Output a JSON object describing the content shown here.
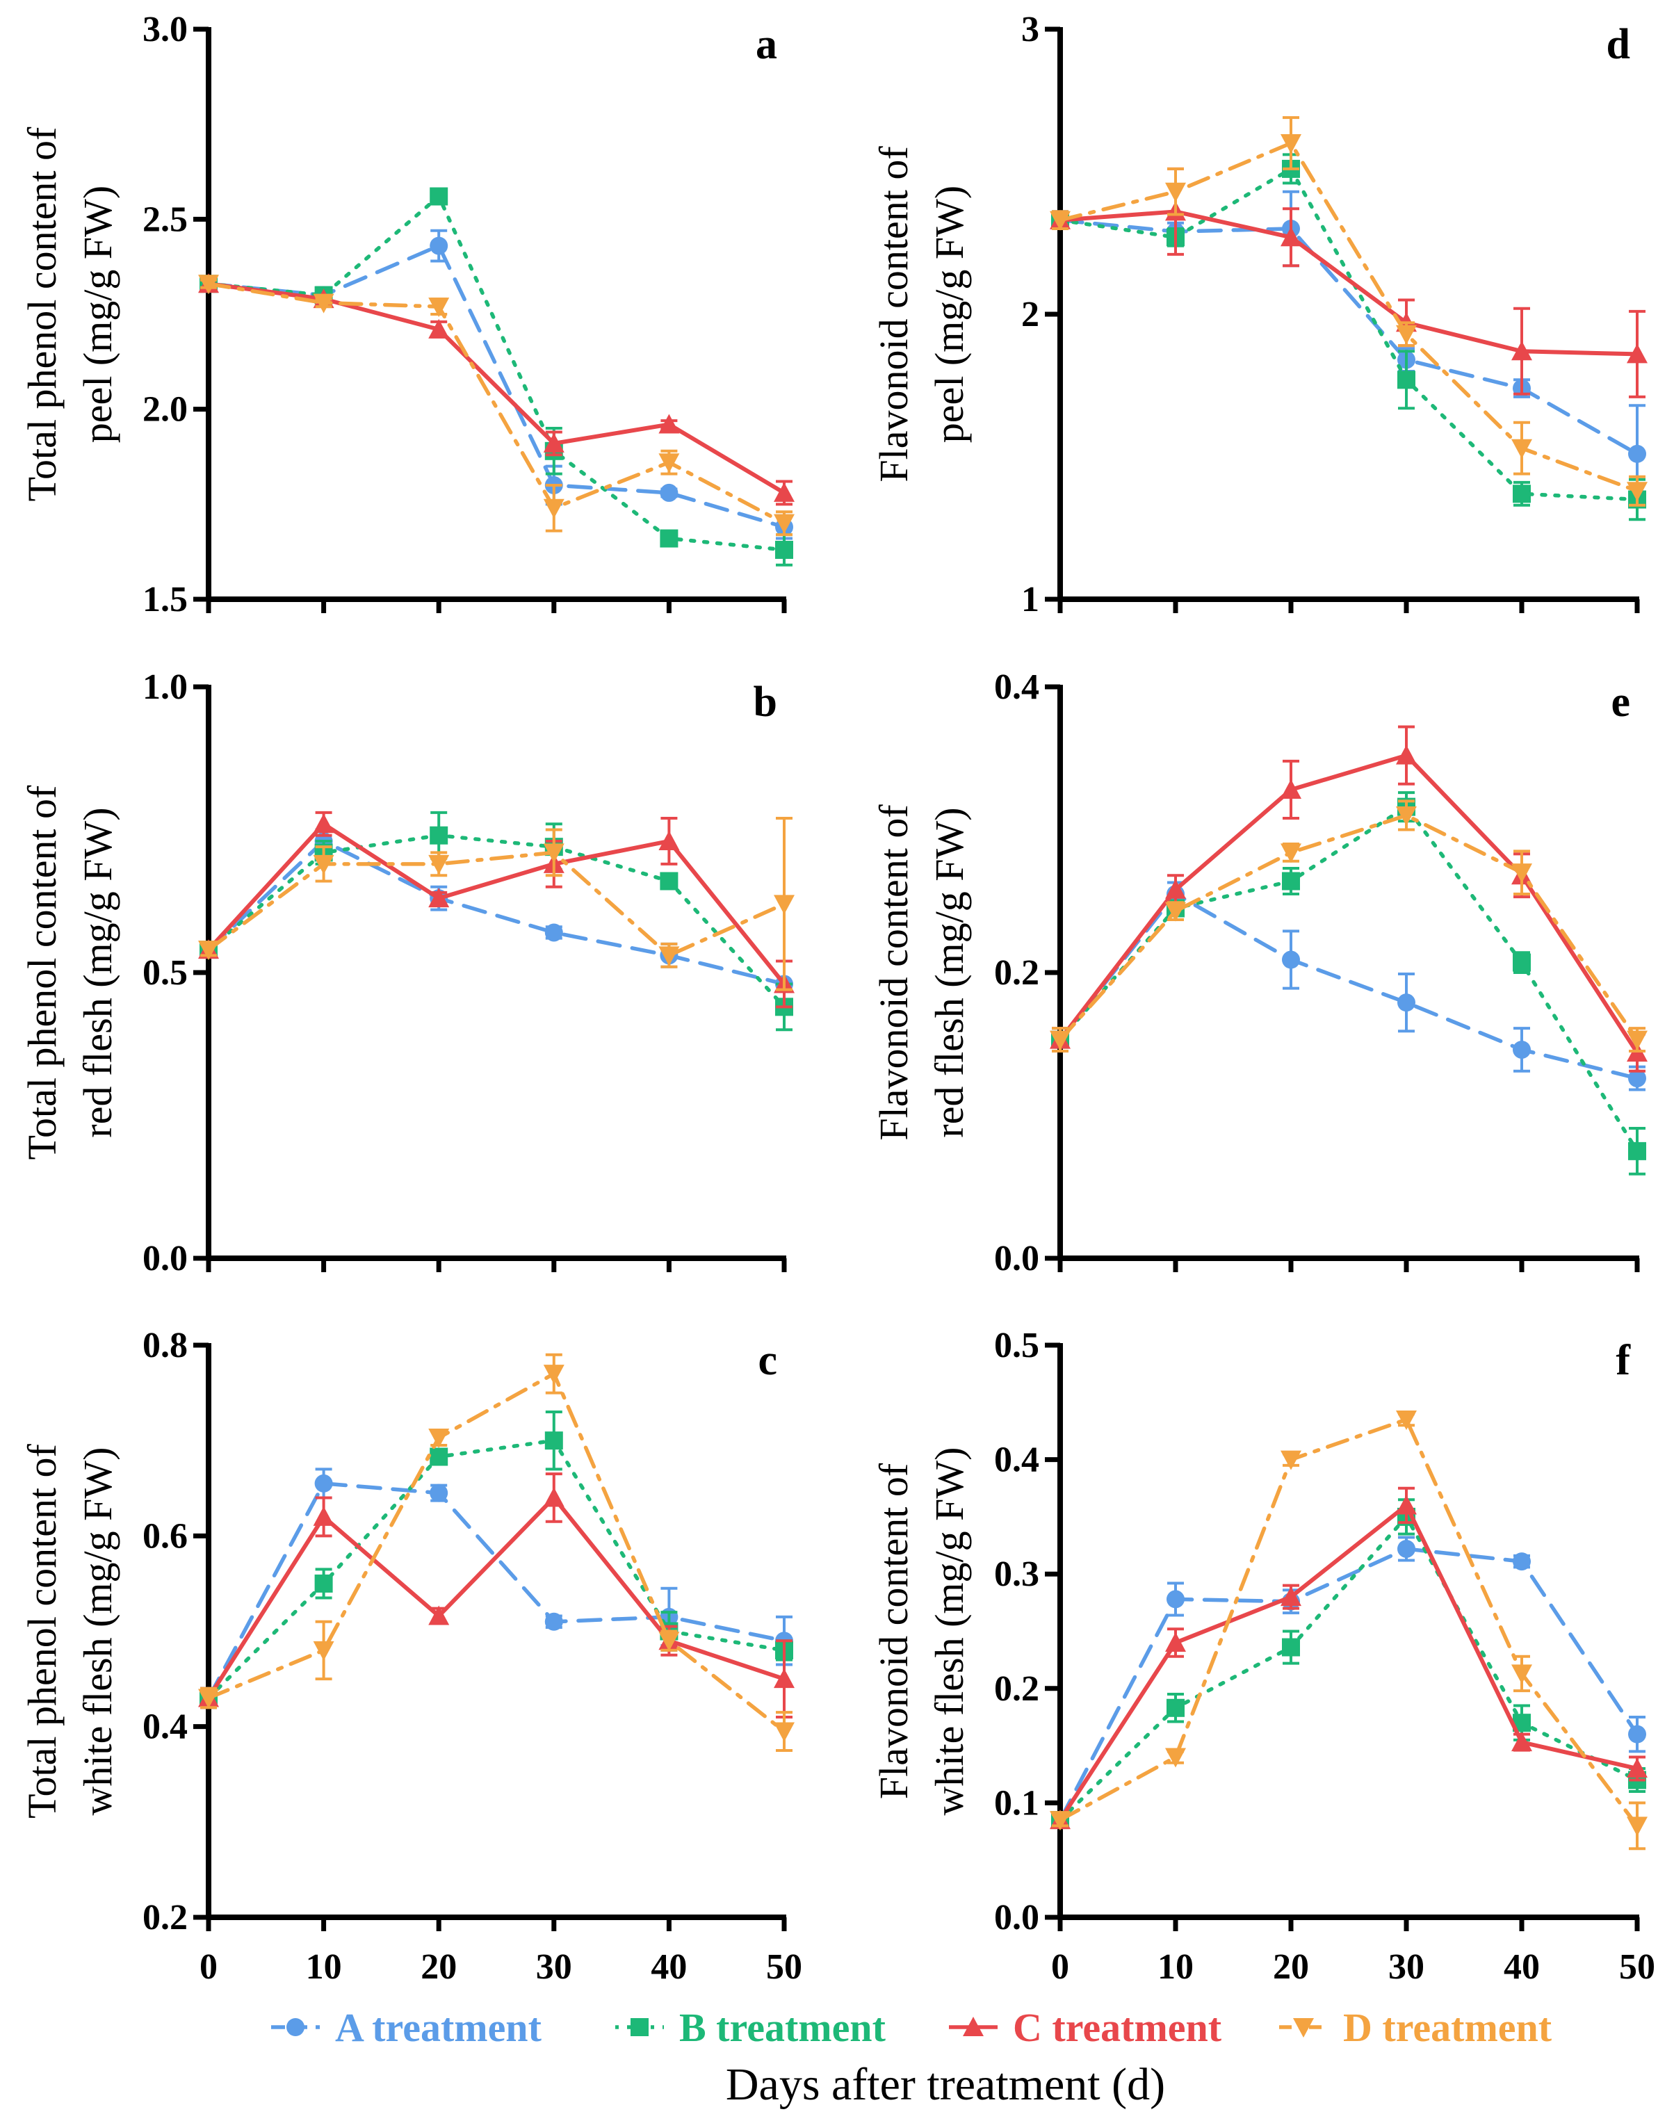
{
  "figure": {
    "xlabel": "Days after treatment (d)",
    "colors": {
      "A": "#5B9CE8",
      "B": "#1DB877",
      "C": "#E8474B",
      "D": "#F4A340"
    }
  },
  "chart_data": [
    {
      "panel": "a",
      "type": "line",
      "ylabel": [
        "Total phenol content of",
        "peel (mg/g FW)"
      ],
      "x": [
        0,
        10,
        20,
        30,
        40,
        50
      ],
      "xticks": [
        "0",
        "10",
        "20",
        "30",
        "40",
        "50"
      ],
      "ylim": [
        1.5,
        3.0
      ],
      "yticks": [
        1.5,
        2.0,
        2.5,
        3.0
      ],
      "ytick_labels": [
        "1.5",
        "2.0",
        "2.5",
        "3.0"
      ],
      "series": [
        {
          "name": "A treatment",
          "values": [
            2.33,
            2.3,
            2.43,
            1.8,
            1.78,
            1.69
          ],
          "errors": [
            0.01,
            0.02,
            0.04,
            0.05,
            0.01,
            0.03
          ]
        },
        {
          "name": "B treatment",
          "values": [
            2.33,
            2.3,
            2.56,
            1.89,
            1.66,
            1.63
          ],
          "errors": [
            0.01,
            0.02,
            0.02,
            0.06,
            0.01,
            0.04
          ]
        },
        {
          "name": "C treatment",
          "values": [
            2.33,
            2.29,
            2.21,
            1.91,
            1.96,
            1.78
          ],
          "errors": [
            0.01,
            0.01,
            0.02,
            0.03,
            0.01,
            0.03
          ]
        },
        {
          "name": "D treatment",
          "values": [
            2.33,
            2.28,
            2.27,
            1.74,
            1.86,
            1.7
          ],
          "errors": [
            0.01,
            0.01,
            0.02,
            0.06,
            0.03,
            0.03
          ]
        }
      ]
    },
    {
      "panel": "d",
      "type": "line",
      "ylabel": [
        "Flavonoid content of",
        "peel (mg/g FW)"
      ],
      "x": [
        0,
        10,
        20,
        30,
        40,
        50
      ],
      "xticks": [
        "0",
        "10",
        "20",
        "30",
        "40",
        "50"
      ],
      "ylim": [
        1,
        3
      ],
      "yticks": [
        1,
        2,
        3
      ],
      "ytick_labels": [
        "1",
        "2",
        "3"
      ],
      "series": [
        {
          "name": "A treatment",
          "values": [
            2.33,
            2.29,
            2.3,
            1.84,
            1.74,
            1.51
          ],
          "errors": [
            0.03,
            0.03,
            0.13,
            0.04,
            0.03,
            0.17
          ]
        },
        {
          "name": "B treatment",
          "values": [
            2.33,
            2.27,
            2.51,
            1.77,
            1.37,
            1.35
          ],
          "errors": [
            0.03,
            0.03,
            0.05,
            0.1,
            0.04,
            0.07
          ]
        },
        {
          "name": "C treatment",
          "values": [
            2.33,
            2.36,
            2.27,
            1.97,
            1.87,
            1.86
          ],
          "errors": [
            0.03,
            0.15,
            0.1,
            0.08,
            0.15,
            0.15
          ]
        },
        {
          "name": "D treatment",
          "values": [
            2.33,
            2.43,
            2.6,
            1.93,
            1.53,
            1.38
          ],
          "errors": [
            0.03,
            0.08,
            0.09,
            0.04,
            0.09,
            0.05
          ]
        }
      ]
    },
    {
      "panel": "b",
      "type": "line",
      "ylabel": [
        "Total phenol content of",
        "red flesh (mg/g FW)"
      ],
      "x": [
        0,
        10,
        20,
        30,
        40,
        50
      ],
      "xticks": [
        "0",
        "10",
        "20",
        "30",
        "40",
        "50"
      ],
      "ylim": [
        0.0,
        1.0
      ],
      "yticks": [
        0.0,
        0.5,
        1.0
      ],
      "ytick_labels": [
        "0.0",
        "0.5",
        "1.0"
      ],
      "series": [
        {
          "name": "A treatment",
          "values": [
            0.54,
            0.73,
            0.63,
            0.57,
            0.53,
            0.48
          ],
          "errors": [
            0.01,
            0.02,
            0.02,
            0.01,
            0.02,
            0.04
          ]
        },
        {
          "name": "B treatment",
          "values": [
            0.54,
            0.71,
            0.74,
            0.72,
            0.66,
            0.44
          ],
          "errors": [
            0.01,
            0.02,
            0.04,
            0.04,
            0.01,
            0.04
          ]
        },
        {
          "name": "C treatment",
          "values": [
            0.54,
            0.76,
            0.63,
            0.69,
            0.73,
            0.48
          ],
          "errors": [
            0.01,
            0.02,
            0.01,
            0.04,
            0.04,
            0.04
          ]
        },
        {
          "name": "D treatment",
          "values": [
            0.54,
            0.69,
            0.69,
            0.71,
            0.53,
            0.62
          ],
          "errors": [
            0.01,
            0.03,
            0.02,
            0.04,
            0.02,
            0.15
          ]
        }
      ]
    },
    {
      "panel": "e",
      "type": "line",
      "ylabel": [
        "Flavonoid content of",
        "red flesh (mg/g FW)"
      ],
      "x": [
        0,
        10,
        20,
        30,
        40,
        50
      ],
      "xticks": [
        "0",
        "10",
        "20",
        "30",
        "40",
        "50"
      ],
      "ylim": [
        0.0,
        0.4
      ],
      "yticks": [
        0.0,
        0.2,
        0.4
      ],
      "ytick_labels": [
        "0.0",
        "0.2",
        "0.4"
      ],
      "series": [
        {
          "name": "A treatment",
          "values": [
            0.153,
            0.255,
            0.209,
            0.179,
            0.146,
            0.126
          ],
          "errors": [
            0.008,
            0.008,
            0.02,
            0.02,
            0.015,
            0.008
          ]
        },
        {
          "name": "B treatment",
          "values": [
            0.153,
            0.245,
            0.264,
            0.316,
            0.207,
            0.075
          ],
          "errors": [
            0.008,
            0.008,
            0.009,
            0.01,
            0.007,
            0.016
          ]
        },
        {
          "name": "C treatment",
          "values": [
            0.153,
            0.258,
            0.328,
            0.352,
            0.268,
            0.144
          ],
          "errors": [
            0.008,
            0.01,
            0.02,
            0.02,
            0.015,
            0.013
          ]
        },
        {
          "name": "D treatment",
          "values": [
            0.153,
            0.243,
            0.284,
            0.31,
            0.27,
            0.153
          ],
          "errors": [
            0.008,
            0.006,
            0.006,
            0.01,
            0.015,
            0.008
          ]
        }
      ]
    },
    {
      "panel": "c",
      "type": "line",
      "ylabel": [
        "Total phenol content of",
        "white flesh (mg/g FW)"
      ],
      "x": [
        0,
        10,
        20,
        30,
        40,
        50
      ],
      "xticks": [
        "0",
        "10",
        "20",
        "30",
        "40",
        "50"
      ],
      "ylim": [
        0.2,
        0.8
      ],
      "yticks": [
        0.2,
        0.4,
        0.6,
        0.8
      ],
      "ytick_labels": [
        "0.2",
        "0.4",
        "0.6",
        "0.8"
      ],
      "series": [
        {
          "name": "A treatment",
          "values": [
            0.43,
            0.655,
            0.645,
            0.51,
            0.515,
            0.49
          ],
          "errors": [
            0.01,
            0.015,
            0.008,
            0.006,
            0.03,
            0.025
          ]
        },
        {
          "name": "B treatment",
          "values": [
            0.43,
            0.55,
            0.683,
            0.7,
            0.5,
            0.48
          ],
          "errors": [
            0.01,
            0.015,
            0.008,
            0.03,
            0.02,
            0.01
          ]
        },
        {
          "name": "C treatment",
          "values": [
            0.43,
            0.62,
            0.516,
            0.64,
            0.49,
            0.45
          ],
          "errors": [
            0.01,
            0.02,
            0.008,
            0.025,
            0.015,
            0.04
          ]
        },
        {
          "name": "D treatment",
          "values": [
            0.43,
            0.48,
            0.703,
            0.77,
            0.49,
            0.395
          ],
          "errors": [
            0.01,
            0.03,
            0.008,
            0.02,
            0.01,
            0.02
          ]
        }
      ]
    },
    {
      "panel": "f",
      "type": "line",
      "ylabel": [
        "Flavonoid content of",
        "white flesh (mg/g FW)"
      ],
      "x": [
        0,
        10,
        20,
        30,
        40,
        50
      ],
      "xticks": [
        "0",
        "10",
        "20",
        "30",
        "40",
        "50"
      ],
      "ylim": [
        0.0,
        0.5
      ],
      "yticks": [
        0.0,
        0.1,
        0.2,
        0.3,
        0.4,
        0.5
      ],
      "ytick_labels": [
        "0.0",
        "0.1",
        "0.2",
        "0.3",
        "0.4",
        "0.5"
      ],
      "series": [
        {
          "name": "A treatment",
          "values": [
            0.085,
            0.278,
            0.276,
            0.322,
            0.311,
            0.16
          ],
          "errors": [
            0.005,
            0.014,
            0.01,
            0.01,
            0.005,
            0.015
          ]
        },
        {
          "name": "B treatment",
          "values": [
            0.085,
            0.183,
            0.236,
            0.35,
            0.17,
            0.12
          ],
          "errors": [
            0.005,
            0.012,
            0.014,
            0.015,
            0.015,
            0.01
          ]
        },
        {
          "name": "C treatment",
          "values": [
            0.085,
            0.24,
            0.28,
            0.36,
            0.153,
            0.13
          ],
          "errors": [
            0.005,
            0.012,
            0.01,
            0.015,
            0.007,
            0.01
          ]
        },
        {
          "name": "D treatment",
          "values": [
            0.085,
            0.14,
            0.4,
            0.435,
            0.213,
            0.08
          ],
          "errors": [
            0.005,
            0.005,
            0.005,
            0.005,
            0.015,
            0.02
          ]
        }
      ]
    }
  ],
  "legend": [
    {
      "key": "A",
      "label": "A treatment",
      "marker": "circle",
      "dash": "dash"
    },
    {
      "key": "B",
      "label": "B treatment",
      "marker": "square",
      "dash": "dot"
    },
    {
      "key": "C",
      "label": "C treatment",
      "marker": "triangle-up",
      "dash": "solid"
    },
    {
      "key": "D",
      "label": "D treatment",
      "marker": "triangle-down",
      "dash": "dashdot"
    }
  ]
}
